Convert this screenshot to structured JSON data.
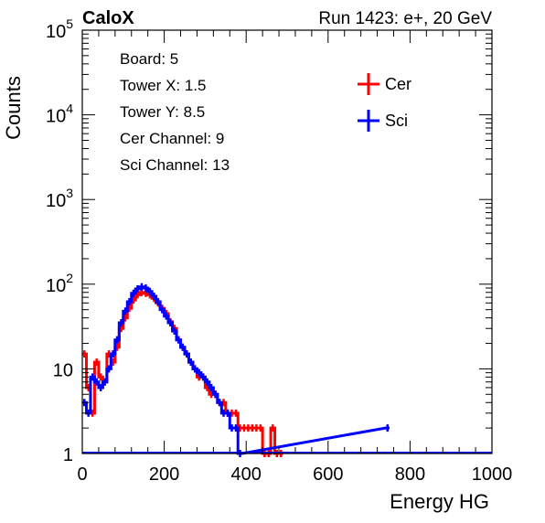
{
  "header": {
    "left": "CaloX",
    "right": "Run 1423: e+, 20 GeV"
  },
  "info_lines": [
    "Board: 5",
    "Tower X: 1.5",
    "Tower Y: 8.5",
    "Cer Channel: 9",
    "Sci Channel: 13"
  ],
  "chart_data": {
    "type": "line",
    "xlabel": "Energy HG",
    "ylabel": "Counts",
    "xlim": [
      0,
      1000
    ],
    "ylim": [
      1,
      100000
    ],
    "yscale": "log",
    "xticks": [
      {
        "value": 0,
        "label": "0"
      },
      {
        "value": 200,
        "label": "200"
      },
      {
        "value": 400,
        "label": "400"
      },
      {
        "value": 600,
        "label": "600"
      },
      {
        "value": 800,
        "label": "800"
      },
      {
        "value": 1000,
        "label": "1000"
      }
    ],
    "yticks": [
      {
        "value": 1,
        "base": "1",
        "exp": ""
      },
      {
        "value": 10,
        "base": "10",
        "exp": ""
      },
      {
        "value": 100,
        "base": "10",
        "exp": "2"
      },
      {
        "value": 1000,
        "base": "10",
        "exp": "3"
      },
      {
        "value": 10000,
        "base": "10",
        "exp": "4"
      },
      {
        "value": 100000,
        "base": "10",
        "exp": "5"
      }
    ],
    "grid": false,
    "legend_position": "top-right",
    "series": [
      {
        "name": "Cer",
        "color": "#ff0000",
        "x": [
          0,
          10,
          20,
          30,
          40,
          50,
          60,
          70,
          80,
          90,
          100,
          110,
          120,
          130,
          140,
          150,
          160,
          170,
          180,
          190,
          200,
          210,
          220,
          230,
          240,
          250,
          260,
          270,
          280,
          290,
          300,
          310,
          320,
          330,
          340,
          350,
          360,
          370,
          380,
          390,
          400,
          410,
          420,
          430,
          440,
          450,
          460,
          470,
          480
        ],
        "y": [
          15,
          6,
          3,
          12,
          8,
          7,
          15,
          12,
          18,
          30,
          40,
          52,
          65,
          75,
          80,
          78,
          75,
          68,
          60,
          52,
          45,
          36,
          30,
          22,
          18,
          15,
          12,
          10,
          8,
          8,
          6,
          5,
          5,
          4,
          4,
          3,
          3,
          3,
          2,
          2,
          2,
          2,
          2,
          2,
          1,
          1,
          2,
          1,
          1
        ]
      },
      {
        "name": "Sci",
        "color": "#0000ff",
        "x": [
          0,
          10,
          20,
          30,
          40,
          50,
          60,
          70,
          80,
          90,
          100,
          110,
          120,
          130,
          140,
          150,
          160,
          170,
          180,
          190,
          200,
          210,
          220,
          230,
          240,
          250,
          260,
          270,
          280,
          290,
          300,
          310,
          320,
          330,
          340,
          350,
          360,
          370,
          380,
          740
        ],
        "y": [
          4,
          3,
          8,
          7,
          6,
          7,
          10,
          15,
          22,
          35,
          48,
          62,
          78,
          88,
          93,
          90,
          82,
          72,
          62,
          50,
          42,
          35,
          28,
          22,
          18,
          15,
          12,
          10,
          9,
          8,
          7,
          6,
          5,
          4,
          3,
          3,
          2,
          2,
          1,
          2
        ]
      }
    ]
  }
}
